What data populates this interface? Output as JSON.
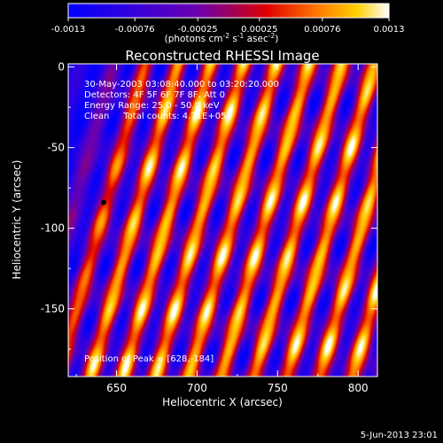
{
  "chart_data": {
    "type": "heatmap",
    "title": "Reconstructed RHESSI Image",
    "xlabel": "Heliocentric X (arcsec)",
    "ylabel": "Heliocentric Y (arcsec)",
    "xlim": [
      620,
      812
    ],
    "ylim": [
      -192,
      2
    ],
    "xticks": [
      650,
      700,
      750,
      800
    ],
    "yticks": [
      0,
      -50,
      -100,
      -150
    ],
    "colorbar": {
      "min": -0.0013,
      "max": 0.0013,
      "ticks": [
        -0.0013,
        -0.00076,
        -0.00025,
        0.00025,
        0.00076,
        0.0013
      ],
      "tick_labels": [
        "-0.0013",
        "-0.00076",
        "-0.00025",
        "0.00025",
        "0.00076",
        "0.0013"
      ],
      "unit_text": "(photons cm",
      "unit_sup1": "-2",
      "unit_mid": " s",
      "unit_sup2": "-1",
      "unit_end": " asec",
      "unit_sup3": "-2",
      "unit_close": ")"
    },
    "annotations": [
      "30-May-2003 03:08:40.000 to 03:20:20.000",
      "Detectors: 4F 5F 6F 7F 8F, Att 0",
      "Energy Range: 25.0 - 50.0 keV",
      "Clean     Total counts: 4.71E+05"
    ],
    "peak_label": "Position of Peak = [628,-184]",
    "peak": [
      628,
      -184
    ],
    "marker_point": [
      642,
      -84
    ],
    "timestamp": "5-Jun-2013 23:01"
  }
}
